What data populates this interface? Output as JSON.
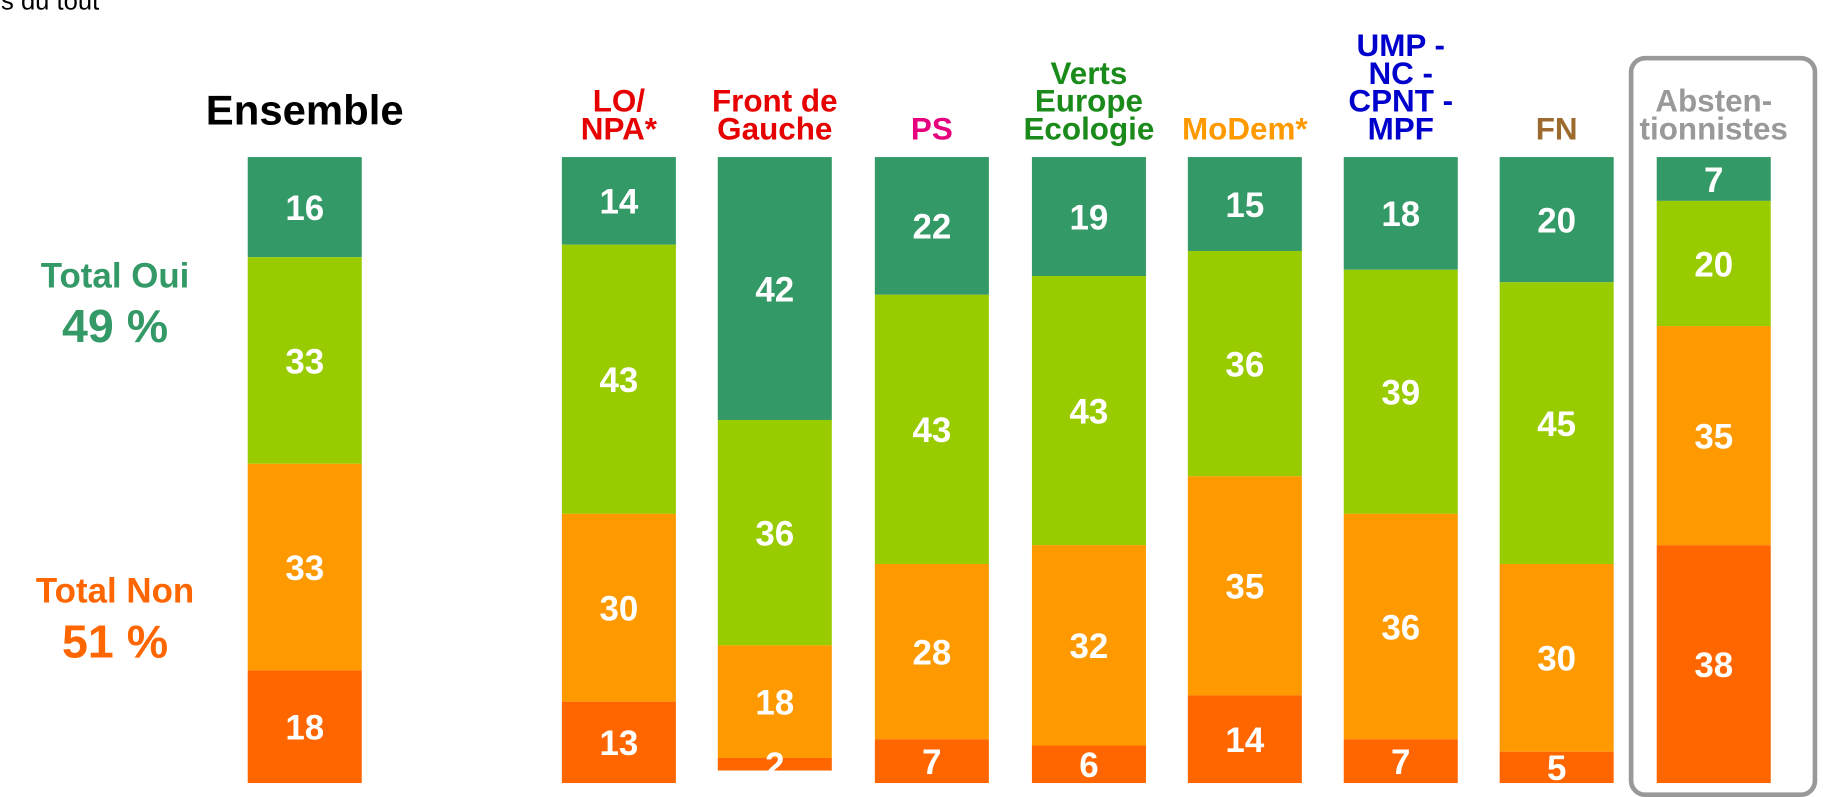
{
  "chart_data": {
    "type": "stacked_bar",
    "annotations": [
      "s du tout",
      "Total Oui",
      "49 %",
      "Total Non",
      "51 %"
    ],
    "categories": [
      [
        "Ensemble"
      ],
      [
        "LO/",
        "NPA*"
      ],
      [
        "Front de",
        "Gauche"
      ],
      [
        "PS"
      ],
      [
        "Verts",
        "Europe",
        "Ecologie"
      ],
      [
        "MoDem*"
      ],
      [
        "UMP -",
        "NC -",
        "CPNT -",
        "MPF"
      ],
      [
        "FN"
      ],
      [
        "Absten-",
        "tionnistes"
      ]
    ],
    "category_colors": [
      "#000000",
      "#e60000",
      "#e60000",
      "#e6007e",
      "#1a8a1a",
      "#ff9900",
      "#0000cc",
      "#9c6a2e",
      "#999999"
    ],
    "series": [
      {
        "color": "#339966",
        "values": [
          16,
          14,
          42,
          22,
          19,
          15,
          18,
          20,
          7
        ]
      },
      {
        "color": "#99cc00",
        "values": [
          33,
          43,
          36,
          43,
          43,
          36,
          39,
          45,
          20
        ]
      },
      {
        "color": "#ff9900",
        "values": [
          33,
          30,
          18,
          28,
          32,
          35,
          36,
          30,
          35
        ]
      },
      {
        "color": "#ff6600",
        "values": [
          18,
          13,
          2,
          7,
          6,
          14,
          7,
          5,
          38
        ]
      }
    ],
    "ylim": [
      0,
      100
    ]
  }
}
